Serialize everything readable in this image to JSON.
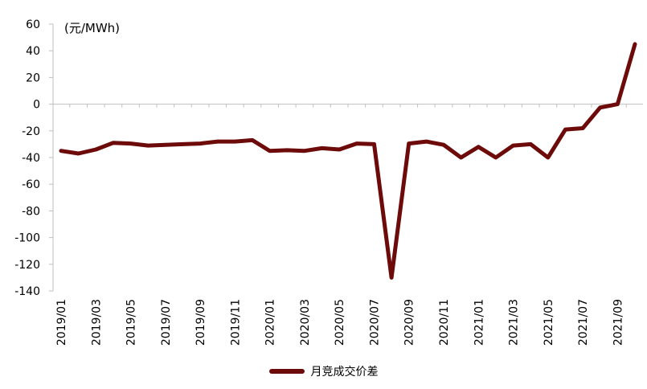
{
  "chart_data": {
    "type": "line",
    "unit_label": "(元/MWh)",
    "xlabel": "",
    "ylabel": "",
    "ylim": [
      -140,
      60
    ],
    "yticks": [
      60,
      40,
      20,
      0,
      -20,
      -40,
      -60,
      -80,
      -100,
      -120,
      -140
    ],
    "x": [
      "2019/01",
      "2019/02",
      "2019/03",
      "2019/04",
      "2019/05",
      "2019/06",
      "2019/07",
      "2019/08",
      "2019/09",
      "2019/10",
      "2019/11",
      "2019/12",
      "2020/01",
      "2020/02",
      "2020/03",
      "2020/04",
      "2020/05",
      "2020/06",
      "2020/07",
      "2020/08",
      "2020/09",
      "2020/10",
      "2020/11",
      "2020/12",
      "2021/01",
      "2021/02",
      "2021/03",
      "2021/04",
      "2021/05",
      "2021/06",
      "2021/07",
      "2021/08",
      "2021/09",
      "2021/10"
    ],
    "xtick_labels": [
      "2019/01",
      "2019/03",
      "2019/05",
      "2019/07",
      "2019/09",
      "2019/11",
      "2020/01",
      "2020/03",
      "2020/05",
      "2020/07",
      "2020/09",
      "2020/11",
      "2021/01",
      "2021/03",
      "2021/05",
      "2021/07",
      "2021/09"
    ],
    "series": [
      {
        "name": "月竞成交价差",
        "color": "#6d0a0a",
        "values": [
          -35,
          -37,
          -34,
          -29,
          -29.5,
          -31,
          -30.5,
          -30,
          -29.5,
          -28,
          -28,
          -27,
          -35,
          -34.5,
          -35,
          -33,
          -34,
          -29.5,
          -30,
          -130,
          -29.5,
          -28,
          -30.5,
          -40,
          -32,
          -40,
          -31,
          -30,
          -40,
          -19,
          -18,
          -2.5,
          0,
          45
        ]
      }
    ],
    "grid": false,
    "legend_position": "bottom"
  }
}
